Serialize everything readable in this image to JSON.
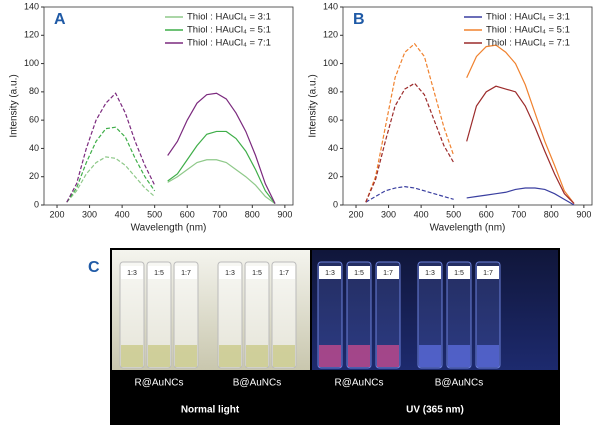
{
  "chart_data": [
    {
      "type": "line",
      "panel": "A",
      "x_label": "Wavelength (nm)",
      "y_label": "Intensity (a.u.)",
      "xlim": [
        160,
        925
      ],
      "xticks": [
        200,
        300,
        400,
        500,
        600,
        700,
        800,
        900
      ],
      "ylim": [
        0,
        140
      ],
      "yticks": [
        0,
        20,
        40,
        60,
        80,
        100,
        120,
        140
      ],
      "line_styles": [
        "dashed",
        "solid"
      ],
      "legend": "upper right",
      "x": [
        230,
        260,
        290,
        320,
        350,
        380,
        410,
        440,
        470,
        500,
        520,
        540,
        570,
        600,
        630,
        660,
        690,
        720,
        750,
        780,
        810,
        840,
        870
      ],
      "series": [
        {
          "name": "Thiol : HAuCl₄ = 3:1",
          "color": "#8fc98a",
          "values": [
            2,
            10,
            22,
            30,
            34,
            33,
            28,
            20,
            12,
            6,
            null,
            16,
            20,
            25,
            30,
            32,
            32,
            30,
            25,
            20,
            14,
            6,
            1
          ]
        },
        {
          "name": "Thiol : HAuCl₄ = 5:1",
          "color": "#3fae49",
          "values": [
            2,
            12,
            30,
            45,
            54,
            55,
            48,
            33,
            20,
            10,
            null,
            17,
            22,
            32,
            42,
            50,
            52,
            52,
            47,
            38,
            25,
            10,
            1
          ]
        },
        {
          "name": "Thiol : HAuCl₄ = 7:1",
          "color": "#7b2a7e",
          "values": [
            2,
            15,
            40,
            60,
            72,
            79,
            65,
            45,
            28,
            14,
            null,
            35,
            45,
            60,
            72,
            78,
            79,
            75,
            65,
            52,
            35,
            15,
            1
          ]
        }
      ]
    },
    {
      "type": "line",
      "panel": "B",
      "x_label": "Wavelength (nm)",
      "y_label": "Intensity (a.u.)",
      "xlim": [
        160,
        925
      ],
      "xticks": [
        200,
        300,
        400,
        500,
        600,
        700,
        800,
        900
      ],
      "ylim": [
        0,
        140
      ],
      "yticks": [
        0,
        20,
        40,
        60,
        80,
        100,
        120,
        140
      ],
      "line_styles": [
        "dashed",
        "solid"
      ],
      "legend": "upper right",
      "x": [
        230,
        260,
        290,
        320,
        350,
        380,
        410,
        440,
        470,
        500,
        520,
        540,
        570,
        600,
        630,
        660,
        690,
        720,
        750,
        780,
        810,
        840,
        870
      ],
      "series": [
        {
          "name": "Thiol : HAuCl₄ = 3:1",
          "color": "#3a3fa0",
          "values": [
            2,
            6,
            10,
            12,
            13,
            12,
            10,
            8,
            6,
            4,
            null,
            5,
            6,
            7,
            8,
            9,
            11,
            12,
            12,
            11,
            8,
            4,
            0
          ]
        },
        {
          "name": "Thiol : HAuCl₄ = 5:1",
          "color": "#f0822f",
          "values": [
            2,
            20,
            55,
            90,
            108,
            114,
            105,
            80,
            55,
            35,
            null,
            90,
            105,
            112,
            113,
            108,
            100,
            85,
            65,
            45,
            28,
            10,
            1
          ]
        },
        {
          "name": "Thiol : HAuCl₄ = 7:1",
          "color": "#9c2b2b",
          "values": [
            2,
            18,
            45,
            70,
            82,
            86,
            78,
            60,
            42,
            30,
            null,
            45,
            70,
            80,
            84,
            82,
            80,
            70,
            55,
            38,
            22,
            8,
            1
          ]
        }
      ]
    }
  ],
  "panel_c": {
    "panel": "C",
    "vial_labels": [
      "1:3",
      "1:5",
      "1:7"
    ],
    "groups": [
      "R@AuNCs",
      "B@AuNCs",
      "R@AuNCs",
      "B@AuNCs"
    ],
    "conditions": [
      "Normal light",
      "UV (365 nm)"
    ]
  }
}
